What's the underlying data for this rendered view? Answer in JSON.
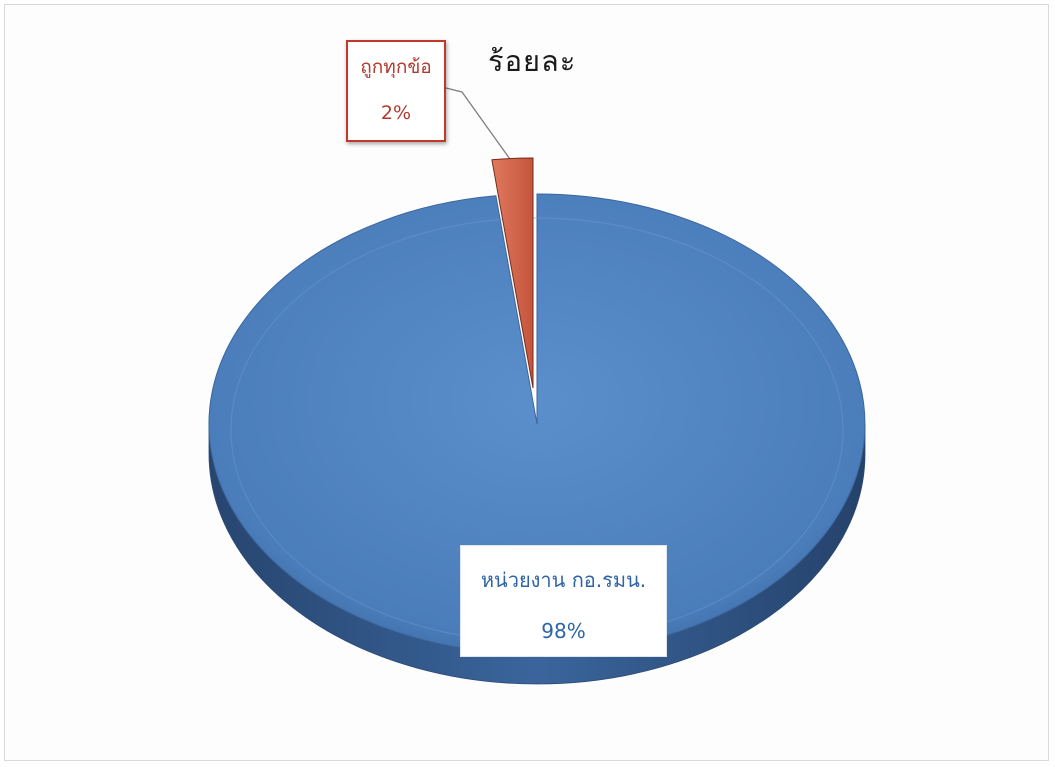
{
  "chart_data": {
    "type": "pie",
    "title": "ร้อยละ",
    "categories": [
      "หน่วยงาน กอ.รมน.",
      "ถูกทุกข้อ"
    ],
    "values": [
      98,
      2
    ],
    "value_labels": [
      "98%",
      "2%"
    ],
    "colors": [
      "#4a7dba",
      "#d9694f"
    ],
    "style": "3d-exploded",
    "legend": "none"
  }
}
